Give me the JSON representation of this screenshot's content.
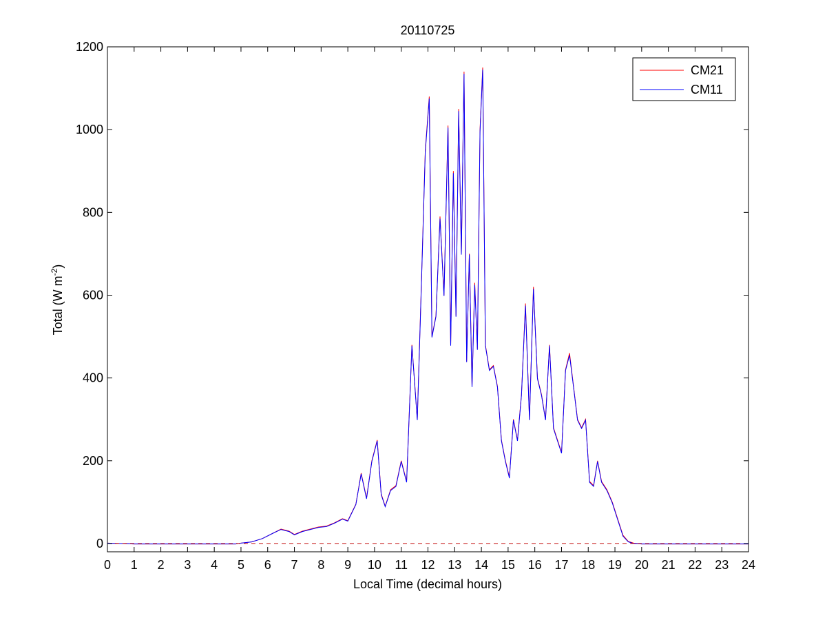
{
  "chart_data": {
    "type": "line",
    "title": "20110725",
    "xlabel": "Local Time (decimal hours)",
    "ylabel": {
      "prefix": "Total (W m",
      "superscript": "-2",
      "suffix": ")"
    },
    "xlim": [
      0,
      24
    ],
    "ylim": [
      -20,
      1200
    ],
    "xticks": [
      "0",
      "1",
      "2",
      "3",
      "4",
      "5",
      "6",
      "7",
      "8",
      "9",
      "10",
      "11",
      "12",
      "13",
      "14",
      "15",
      "16",
      "17",
      "18",
      "19",
      "20",
      "21",
      "22",
      "23",
      "24"
    ],
    "yticks": [
      "0",
      "200",
      "400",
      "600",
      "800",
      "1000",
      "1200"
    ],
    "grid": false,
    "legend_position": "top-right",
    "reference_line": {
      "y": 0,
      "style": "dashed",
      "color": "#c00000"
    },
    "series": [
      {
        "name": "CM21",
        "color": "#ff0000",
        "x": [
          0,
          0.5,
          1,
          2,
          3,
          4,
          4.8,
          5,
          5.4,
          5.8,
          6.2,
          6.5,
          6.8,
          7.0,
          7.3,
          7.6,
          7.9,
          8.2,
          8.5,
          8.8,
          9.0,
          9.3,
          9.5,
          9.7,
          9.9,
          10.1,
          10.25,
          10.4,
          10.6,
          10.8,
          11.0,
          11.2,
          11.4,
          11.6,
          11.75,
          11.9,
          12.05,
          12.15,
          12.3,
          12.45,
          12.6,
          12.75,
          12.85,
          12.95,
          13.05,
          13.15,
          13.25,
          13.35,
          13.45,
          13.55,
          13.65,
          13.75,
          13.85,
          13.95,
          14.05,
          14.15,
          14.3,
          14.45,
          14.6,
          14.75,
          14.9,
          15.05,
          15.2,
          15.35,
          15.5,
          15.65,
          15.8,
          15.95,
          16.1,
          16.25,
          16.4,
          16.55,
          16.7,
          16.85,
          17.0,
          17.15,
          17.3,
          17.45,
          17.6,
          17.75,
          17.9,
          18.05,
          18.2,
          18.35,
          18.5,
          18.7,
          18.9,
          19.1,
          19.3,
          19.5,
          19.7,
          20,
          21,
          22,
          23,
          24
        ],
        "y": [
          1,
          0,
          -1,
          -1,
          -1,
          -1,
          -1,
          1,
          4,
          12,
          25,
          35,
          30,
          22,
          30,
          35,
          40,
          42,
          50,
          60,
          55,
          95,
          170,
          110,
          200,
          250,
          120,
          90,
          130,
          140,
          200,
          150,
          480,
          300,
          620,
          950,
          1080,
          500,
          550,
          790,
          600,
          1010,
          480,
          900,
          550,
          1050,
          700,
          1140,
          440,
          700,
          380,
          630,
          470,
          1000,
          1150,
          480,
          420,
          430,
          380,
          250,
          200,
          160,
          300,
          250,
          360,
          580,
          300,
          620,
          400,
          360,
          300,
          480,
          280,
          250,
          220,
          420,
          460,
          380,
          300,
          280,
          300,
          150,
          140,
          200,
          150,
          130,
          100,
          60,
          20,
          5,
          1,
          -1,
          -1,
          -1,
          -1,
          -1
        ]
      },
      {
        "name": "CM11",
        "color": "#0000ff",
        "x": [
          0,
          0.5,
          1,
          2,
          3,
          4,
          4.8,
          5,
          5.4,
          5.8,
          6.2,
          6.5,
          6.8,
          7.0,
          7.3,
          7.6,
          7.9,
          8.2,
          8.5,
          8.8,
          9.0,
          9.3,
          9.5,
          9.7,
          9.9,
          10.1,
          10.25,
          10.4,
          10.6,
          10.8,
          11.0,
          11.2,
          11.4,
          11.6,
          11.75,
          11.9,
          12.05,
          12.15,
          12.3,
          12.45,
          12.6,
          12.75,
          12.85,
          12.95,
          13.05,
          13.15,
          13.25,
          13.35,
          13.45,
          13.55,
          13.65,
          13.75,
          13.85,
          13.95,
          14.05,
          14.15,
          14.3,
          14.45,
          14.6,
          14.75,
          14.9,
          15.05,
          15.2,
          15.35,
          15.5,
          15.65,
          15.8,
          15.95,
          16.1,
          16.25,
          16.4,
          16.55,
          16.7,
          16.85,
          17.0,
          17.15,
          17.3,
          17.45,
          17.6,
          17.75,
          17.9,
          18.05,
          18.2,
          18.35,
          18.5,
          18.7,
          18.9,
          19.1,
          19.3,
          19.5,
          19.7,
          20,
          21,
          22,
          23,
          24
        ],
        "y": [
          1,
          0,
          -1,
          -1,
          -1,
          -1,
          -1,
          1,
          4,
          12,
          25,
          34,
          29,
          21,
          29,
          34,
          39,
          41,
          49,
          59,
          54,
          94,
          168,
          108,
          198,
          248,
          118,
          89,
          128,
          138,
          198,
          148,
          478,
          298,
          615,
          945,
          1075,
          498,
          548,
          785,
          598,
          1005,
          478,
          895,
          548,
          1045,
          698,
          1135,
          438,
          698,
          378,
          625,
          468,
          995,
          1145,
          478,
          418,
          428,
          378,
          248,
          198,
          158,
          298,
          248,
          358,
          575,
          298,
          615,
          398,
          358,
          298,
          478,
          278,
          248,
          218,
          418,
          455,
          378,
          298,
          278,
          298,
          148,
          138,
          198,
          148,
          128,
          98,
          58,
          18,
          4,
          0,
          -1,
          -1,
          -1,
          -1,
          -1
        ]
      }
    ]
  }
}
